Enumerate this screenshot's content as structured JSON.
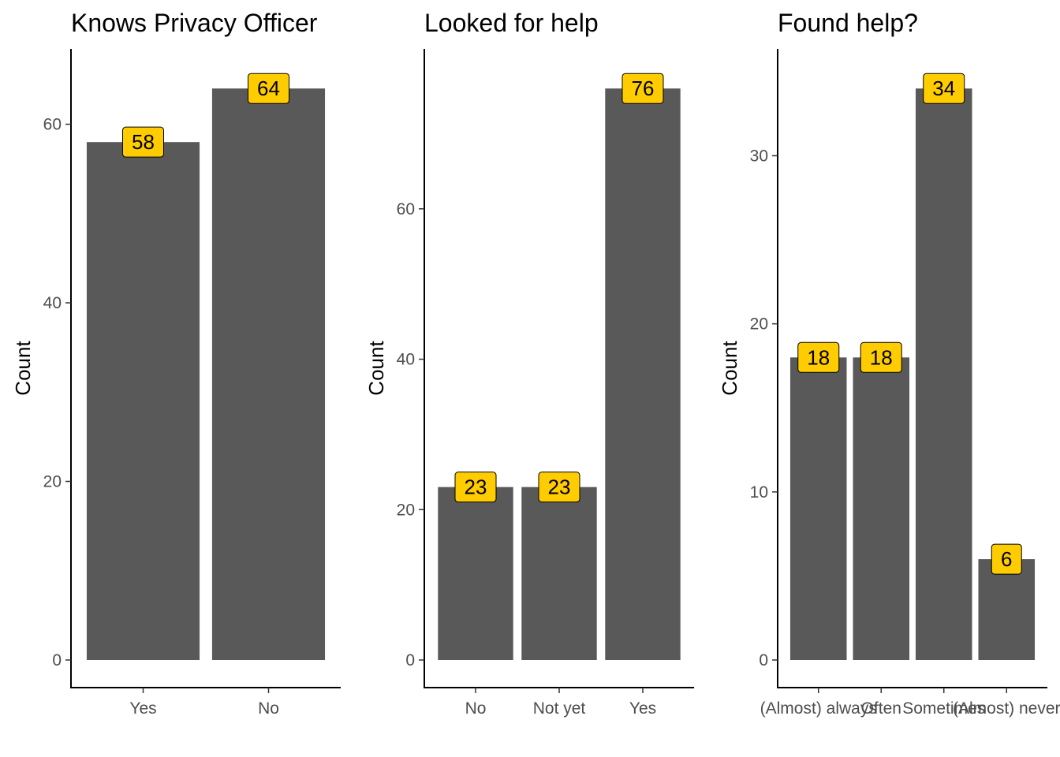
{
  "chart_data": [
    {
      "type": "bar",
      "title": "Knows Privacy Officer",
      "xlabel": "",
      "ylabel": "Count",
      "categories": [
        "Yes",
        "No"
      ],
      "values": [
        58,
        64
      ],
      "ylim": [
        0,
        67.2
      ],
      "yticks": [
        0,
        20,
        40,
        60
      ],
      "grid": false,
      "bar_color": "#595959",
      "label_fill": "#FFCC00"
    },
    {
      "type": "bar",
      "title": "Looked for help",
      "xlabel": "",
      "ylabel": "Count",
      "categories": [
        "No",
        "Not yet",
        "Yes"
      ],
      "values": [
        23,
        23,
        76
      ],
      "ylim": [
        0,
        79.8
      ],
      "yticks": [
        0,
        20,
        40,
        60
      ],
      "grid": false,
      "bar_color": "#595959",
      "label_fill": "#FFCC00"
    },
    {
      "type": "bar",
      "title": "Found help?",
      "xlabel": "",
      "ylabel": "Count",
      "categories": [
        "(Almost) always",
        "Often",
        "Sometimes",
        "(Almost) never"
      ],
      "values": [
        18,
        18,
        34,
        6
      ],
      "ylim": [
        0,
        35.7
      ],
      "yticks": [
        0,
        10,
        20,
        30
      ],
      "grid": false,
      "bar_color": "#595959",
      "label_fill": "#FFCC00"
    }
  ]
}
